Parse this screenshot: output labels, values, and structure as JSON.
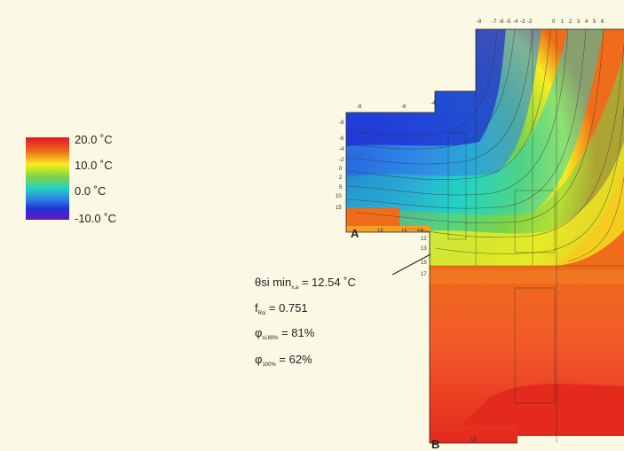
{
  "legend": {
    "items": [
      {
        "label": "20.0 ˚C",
        "color": "#e0162a"
      },
      {
        "label": "10.0 ˚C",
        "color": "#f7ee20"
      },
      {
        "label": "0.0 ˚C",
        "color": "#24d3c2"
      },
      {
        "label": "-10.0 ˚C",
        "color": "#2036d6"
      }
    ]
  },
  "annotation": {
    "theta_prefix": "θsi min",
    "theta_sub": "x,a",
    "theta_value": "= 12.54 ˚C",
    "f_prefix": "f",
    "f_sub": "Rsi",
    "f_value": "= 0.751",
    "phi1_prefix": "φ",
    "phi1_sub": "si,80%",
    "phi1_value": "= 81%",
    "phi2_prefix": "φ",
    "phi2_sub": "100%",
    "phi2_value": "= 62%"
  },
  "points": {
    "a": "A",
    "b": "B"
  },
  "top_ticks": [
    "-8",
    "-7",
    "-6",
    "-5",
    "-4",
    "-3",
    "-2",
    "0",
    "1",
    "2",
    "3",
    "4",
    "5",
    "6"
  ],
  "upper_ticks": [
    "-8",
    "-6",
    "-4"
  ],
  "left_ticks": [
    "-8",
    "-6",
    "-4",
    "-2",
    "0",
    "2",
    "5",
    "10",
    "15"
  ],
  "bottom_ticks": [
    "18",
    "16",
    "14"
  ],
  "side_ticks": [
    "12",
    "13",
    "15",
    "17"
  ],
  "base_tick": "15"
}
